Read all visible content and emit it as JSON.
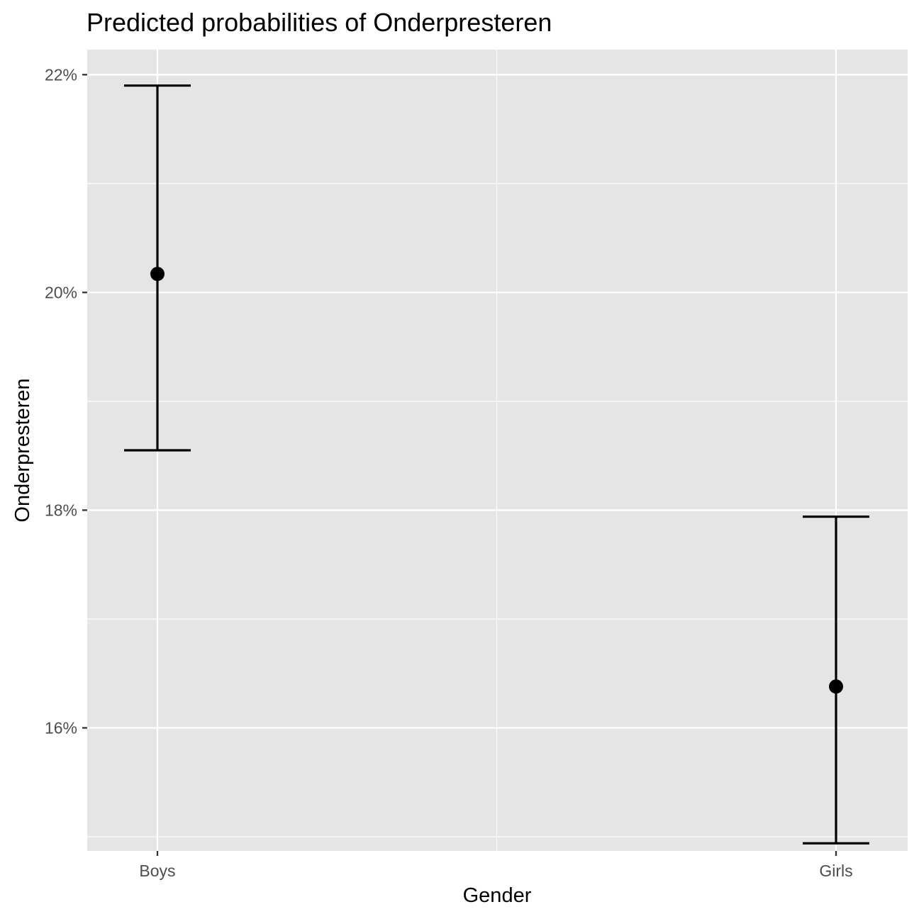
{
  "chart_data": {
    "type": "scatter",
    "title": "Predicted probabilities of Onderpresteren",
    "xlabel": "Gender",
    "ylabel": "Onderpresteren",
    "categories": [
      "Boys",
      "Girls"
    ],
    "y_tick_labels": [
      "16%",
      "18%",
      "20%",
      "22%"
    ],
    "y_ticks": [
      0.16,
      0.18,
      0.2,
      0.22
    ],
    "y_minor_ticks": [
      0.15,
      0.17,
      0.19,
      0.21
    ],
    "ylim": [
      0.1487,
      0.2223
    ],
    "grid": true,
    "legend": "none",
    "points": [
      {
        "category": "Boys",
        "value": 0.2017,
        "lower": 0.1855,
        "upper": 0.219
      },
      {
        "category": "Girls",
        "value": 0.1638,
        "lower": 0.1494,
        "upper": 0.1794
      }
    ],
    "colors": {
      "panel": "#e5e5e5",
      "grid": "#ffffff",
      "marks": "#000000",
      "tick_text": "#4d4d4d"
    }
  }
}
